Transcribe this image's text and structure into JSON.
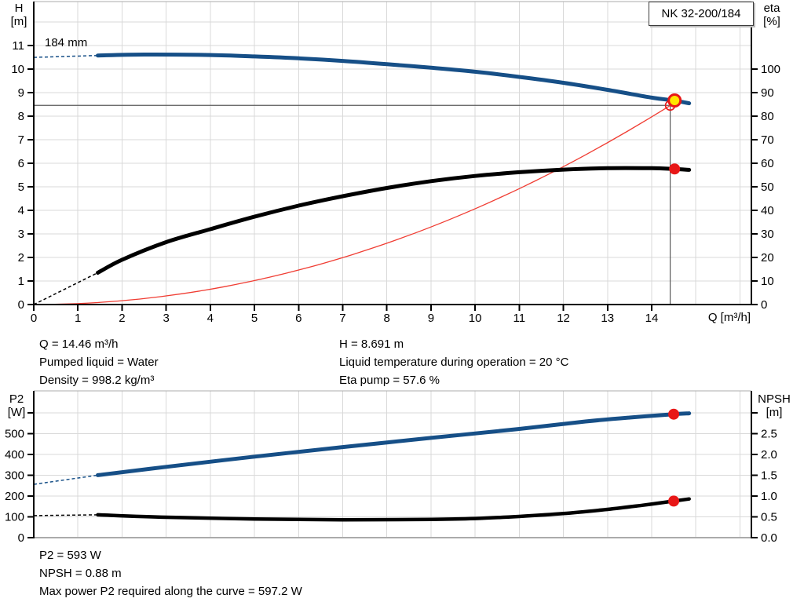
{
  "title_box": "NK 32-200/184",
  "impeller_label": "184 mm",
  "axis_titles": {
    "top_left_1": "H",
    "top_left_2": "[m]",
    "top_right_1": "eta",
    "top_right_2": "[%]",
    "bottom_left_1": "P2",
    "bottom_left_2": "[W]",
    "bottom_right_1": "NPSH",
    "bottom_right_2": "[m]",
    "x": "Q [m³/h]"
  },
  "info_top_left": [
    "Q = 14.46 m³/h",
    "Pumped liquid = Water",
    "Density = 998.2 kg/m³"
  ],
  "info_top_right": [
    "H = 8.691 m",
    "Liquid temperature during operation = 20 °C",
    "Eta pump = 57.6 %"
  ],
  "info_bottom": [
    "P2 = 593 W",
    "NPSH = 0.88 m",
    "Max power P2 required along the curve = 597.2 W"
  ],
  "colors": {
    "curve_blue": "#164f87",
    "curve_black": "#000000",
    "system_red": "#f03d33",
    "marker_red": "#e81717",
    "marker_yellow": "#ffe600",
    "grid": "#d9d9d9",
    "frame": "#ababab",
    "crosshair": "#5a5a5a",
    "axis": "#000000"
  },
  "chart_data": [
    {
      "type": "line",
      "id": "qh",
      "title": "NK 32-200/184",
      "xlabel": "Q [m³/h]",
      "ylabel_left": "H [m]",
      "ylabel_right": "eta [%]",
      "annotation": "184 mm",
      "xlim": [
        0,
        16.26
      ],
      "ylim_left": [
        0,
        12.87
      ],
      "ylim_right": [
        0,
        128.7
      ],
      "x_ticks": [
        [
          0,
          "0"
        ],
        [
          1,
          "1"
        ],
        [
          2,
          "2"
        ],
        [
          3,
          "3"
        ],
        [
          4,
          "4"
        ],
        [
          5,
          "5"
        ],
        [
          6,
          "6"
        ],
        [
          7,
          "7"
        ],
        [
          8,
          "8"
        ],
        [
          9,
          "9"
        ],
        [
          10,
          "10"
        ],
        [
          11,
          "11"
        ],
        [
          12,
          "12"
        ],
        [
          13,
          "13"
        ],
        [
          14,
          "14"
        ]
      ],
      "y_ticks_left": [
        [
          0,
          "0"
        ],
        [
          1,
          "1"
        ],
        [
          2,
          "2"
        ],
        [
          3,
          "3"
        ],
        [
          4,
          "4"
        ],
        [
          5,
          "5"
        ],
        [
          6,
          "6"
        ],
        [
          7,
          "7"
        ],
        [
          8,
          "8"
        ],
        [
          9,
          "9"
        ],
        [
          10,
          "10"
        ],
        [
          11,
          "11"
        ]
      ],
      "y_ticks_right": [
        [
          0,
          "0"
        ],
        [
          10,
          "10"
        ],
        [
          20,
          "20"
        ],
        [
          30,
          "30"
        ],
        [
          40,
          "40"
        ],
        [
          50,
          "50"
        ],
        [
          60,
          "60"
        ],
        [
          70,
          "70"
        ],
        [
          80,
          "80"
        ],
        [
          90,
          "90"
        ],
        [
          100,
          "100"
        ]
      ],
      "x_grid": [
        1,
        2,
        3,
        4,
        5,
        6,
        7,
        8,
        9,
        10,
        11,
        12,
        13,
        14,
        15,
        16
      ],
      "y_grid": [
        1,
        2,
        3,
        4,
        5,
        6,
        7,
        8,
        9,
        10,
        11,
        12
      ],
      "series": [
        {
          "name": "system-curve",
          "axis": "left",
          "color": "system_red",
          "width": 1.3,
          "parabola": {
            "q": 14.42,
            "h": 8.46,
            "end": [
              14.52,
              8.65
            ]
          }
        },
        {
          "name": "efficiency-curve",
          "axis": "right",
          "color": "curve_black",
          "width": 5,
          "dash_points": [
            [
              0,
              0
            ],
            [
              1.45,
              13.5
            ]
          ],
          "points": [
            [
              1.45,
              13.5
            ],
            [
              2,
              19
            ],
            [
              3,
              26.5
            ],
            [
              4,
              32
            ],
            [
              5,
              37.3
            ],
            [
              6,
              42
            ],
            [
              7,
              46
            ],
            [
              8,
              49.5
            ],
            [
              9,
              52.4
            ],
            [
              10,
              54.6
            ],
            [
              11,
              56.2
            ],
            [
              12,
              57.3
            ],
            [
              13,
              57.9
            ],
            [
              14,
              57.9
            ],
            [
              14.5,
              57.6
            ],
            [
              14.85,
              57.2
            ]
          ]
        },
        {
          "name": "head-curve",
          "axis": "left",
          "color": "curve_blue",
          "width": 5,
          "dash_points": [
            [
              0,
              10.5
            ],
            [
              1.45,
              10.58
            ]
          ],
          "points": [
            [
              1.45,
              10.58
            ],
            [
              2.5,
              10.62
            ],
            [
              4,
              10.6
            ],
            [
              5,
              10.54
            ],
            [
              6,
              10.46
            ],
            [
              7,
              10.35
            ],
            [
              8,
              10.21
            ],
            [
              9,
              10.06
            ],
            [
              10,
              9.89
            ],
            [
              11,
              9.67
            ],
            [
              12,
              9.42
            ],
            [
              13,
              9.12
            ],
            [
              14,
              8.79
            ],
            [
              14.5,
              8.67
            ],
            [
              14.85,
              8.55
            ]
          ]
        }
      ],
      "crosshair": {
        "q": 14.42,
        "v": 8.46,
        "axis": "left"
      },
      "markers": [
        {
          "name": "requested-duty-circle",
          "q": 14.42,
          "v": 8.46,
          "axis": "left",
          "style": "red-open"
        },
        {
          "name": "eta-duty-dot",
          "q": 14.52,
          "v": 57.6,
          "axis": "right",
          "style": "red"
        },
        {
          "name": "duty-point-marker",
          "q": 14.52,
          "v": 8.67,
          "axis": "left",
          "style": "yellow"
        }
      ],
      "duty_point": {
        "q": 14.46,
        "h": 8.691,
        "eta": 57.6
      }
    },
    {
      "type": "line",
      "id": "p2-npsh",
      "xlabel": "",
      "ylabel_left": "P2 [W]",
      "ylabel_right": "NPSH [m]",
      "xlim": [
        0,
        16.26
      ],
      "ylim_left": [
        0,
        705
      ],
      "ylim_right": [
        0,
        3.53
      ],
      "x_ticks": [],
      "y_ticks_left": [
        [
          0,
          "0"
        ],
        [
          100,
          "100"
        ],
        [
          200,
          "200"
        ],
        [
          300,
          "300"
        ],
        [
          400,
          "400"
        ],
        [
          500,
          "500"
        ],
        [
          600,
          null
        ]
      ],
      "y_ticks_right": [
        [
          0,
          "0.0"
        ],
        [
          0.5,
          "0.5"
        ],
        [
          1,
          "1.0"
        ],
        [
          1.5,
          "1.5"
        ],
        [
          2,
          "2.0"
        ],
        [
          2.5,
          "2.5"
        ],
        [
          3,
          null
        ]
      ],
      "x_grid": [
        1,
        2,
        3,
        4,
        5,
        6,
        7,
        8,
        9,
        10,
        11,
        12,
        13,
        14,
        15,
        16
      ],
      "y_grid": [
        100,
        200,
        300,
        400,
        500,
        600
      ],
      "series": [
        {
          "name": "p2-curve",
          "axis": "left",
          "color": "curve_blue",
          "width": 5,
          "dash_points": [
            [
              0,
              256
            ],
            [
              1.45,
              300
            ]
          ],
          "points": [
            [
              1.45,
              300
            ],
            [
              3,
              340
            ],
            [
              5,
              389
            ],
            [
              7,
              435
            ],
            [
              9,
              479
            ],
            [
              11,
              522
            ],
            [
              12.5,
              558
            ],
            [
              13.5,
              577
            ],
            [
              14.5,
              593
            ],
            [
              14.85,
              597
            ]
          ]
        },
        {
          "name": "npsh-curve",
          "axis": "right",
          "color": "curve_black",
          "width": 4.5,
          "dash_points": [
            [
              0,
              0.53
            ],
            [
              1.45,
              0.55
            ]
          ],
          "points": [
            [
              1.45,
              0.55
            ],
            [
              3,
              0.49
            ],
            [
              5,
              0.45
            ],
            [
              7,
              0.43
            ],
            [
              9,
              0.44
            ],
            [
              10,
              0.46
            ],
            [
              11,
              0.51
            ],
            [
              12,
              0.58
            ],
            [
              13,
              0.68
            ],
            [
              13.8,
              0.78
            ],
            [
              14.5,
              0.88
            ],
            [
              14.85,
              0.93
            ]
          ]
        }
      ],
      "markers": [
        {
          "name": "p2-duty-dot",
          "q": 14.5,
          "v": 593,
          "axis": "left",
          "style": "red"
        },
        {
          "name": "npsh-duty-dot",
          "q": 14.5,
          "v": 0.88,
          "axis": "right",
          "style": "red"
        }
      ],
      "duty_point": {
        "p2": 593,
        "npsh": 0.88
      }
    }
  ]
}
